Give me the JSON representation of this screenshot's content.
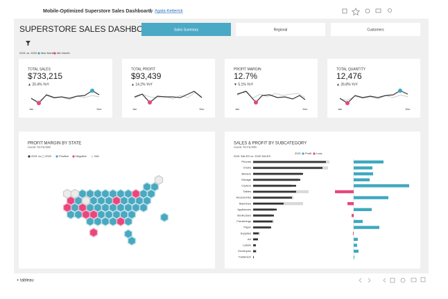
{
  "header": {
    "title": "Mobile-Optimized Superstore Sales Dashboard",
    "by": "by",
    "author": "Agata Ketterick"
  },
  "dashboard": {
    "title": "SUPERSTORE SALES DASHBOARD",
    "tabs": [
      "Sales Summary",
      "Regional",
      "Customers"
    ],
    "legend": {
      "comparison": "2021 vs. 2020",
      "max": "Max Month",
      "min": "Min Month"
    }
  },
  "kpis": [
    {
      "label": "TOTAL SALES",
      "value": "$733,215",
      "change": "▲ 20.4% YoY",
      "start": "Jan",
      "end": "Dec"
    },
    {
      "label": "TOTAL PROFIT",
      "value": "$93,439",
      "change": "▲ 14.2% YoY",
      "start": "Jan",
      "end": "Dec"
    },
    {
      "label": "PROFIT MARGIN",
      "value": "12.7%",
      "change": "▼ 5.1% YoY",
      "start": "Jan",
      "end": "Dec"
    },
    {
      "label": "TOTAL QUANTITY",
      "value": "12,476",
      "change": "▲ 26.8% YoY",
      "start": "Jan",
      "end": "Dec"
    }
  ],
  "state_map": {
    "title": "PROFIT MARGIN BY STATE",
    "subtitle": "CLICK TO FILTER",
    "legend": [
      "2021 vs.",
      "2020",
      "Positive",
      "Negative",
      "N/A"
    ]
  },
  "subcategory": {
    "title": "SALES & PROFIT BY SUBCATEGORY",
    "subtitle": "CLICK TO FILTER",
    "sales_legend": "2021 SALES vs. 2020 SALES",
    "profit_legend": [
      "2021",
      "Profit",
      "Loss"
    ],
    "categories": [
      "Phones",
      "Chairs",
      "Binders",
      "Storage",
      "Copiers",
      "Tables",
      "Accessories",
      "Machines",
      "Appliances",
      "Bookcases",
      "Furnishings",
      "Paper",
      "Supplies",
      "Art",
      "Labels",
      "Envelopes",
      "Fasteners"
    ],
    "sales_2021": [
      105,
      100,
      72,
      68,
      62,
      62,
      56,
      44,
      34,
      30,
      28,
      26,
      8,
      7,
      4,
      4,
      1
    ],
    "sales_2020": [
      110,
      108,
      70,
      65,
      55,
      80,
      58,
      72,
      30,
      26,
      30,
      24,
      10,
      7,
      4,
      5,
      1
    ],
    "profit": [
      43,
      27,
      28,
      23,
      80,
      -27,
      50,
      -9,
      26,
      -3,
      13,
      37,
      -1,
      6,
      5,
      7,
      1
    ],
    "colors": {
      "sales_2021": "#333333",
      "sales_2020": "#d9d9d9",
      "profit": "#3fa8c0",
      "loss": "#e8467c"
    }
  },
  "footer": {
    "brand": "tableau"
  }
}
